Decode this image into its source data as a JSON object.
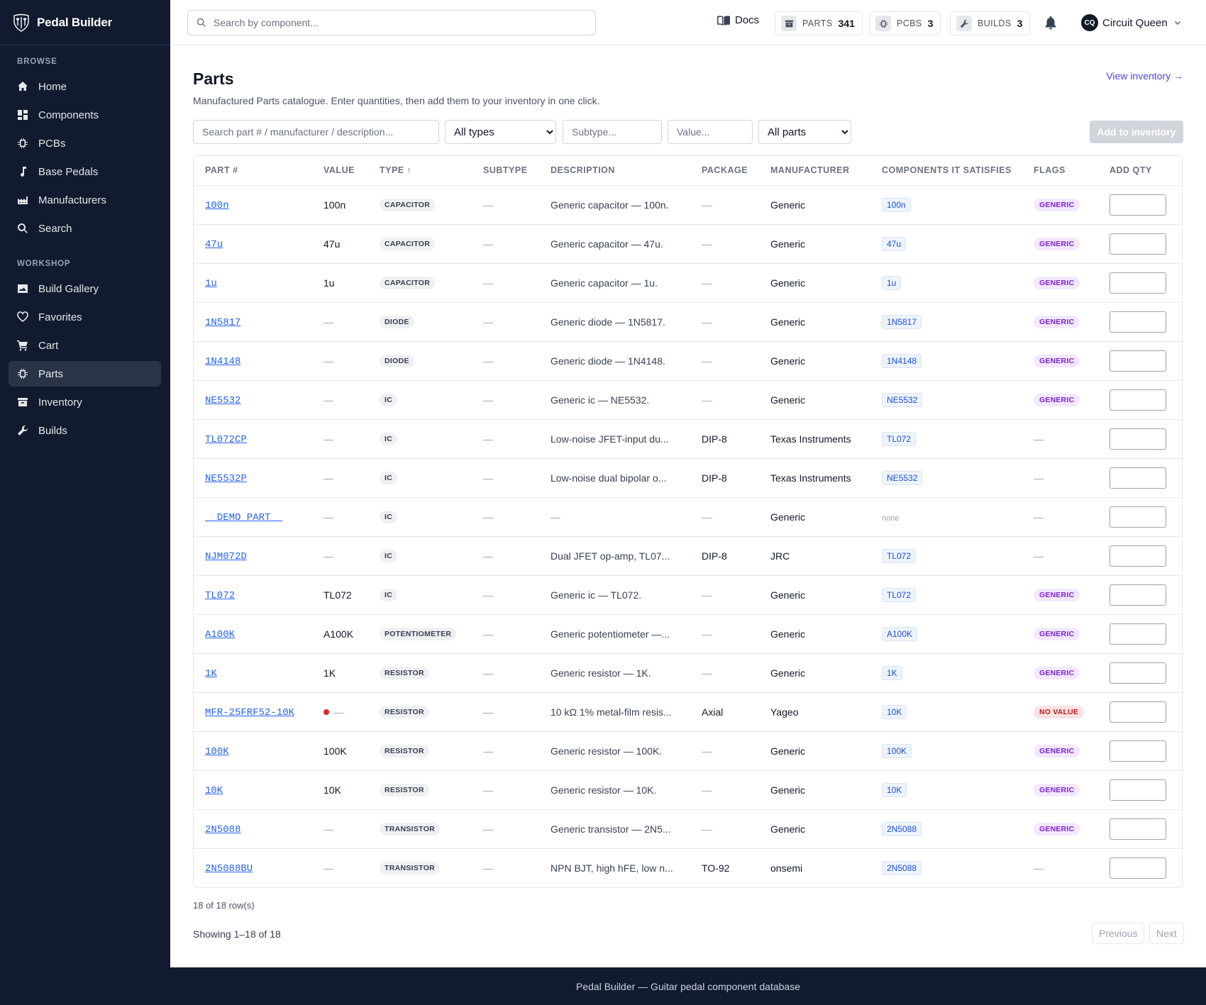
{
  "app": {
    "name": "Pedal Builder"
  },
  "sidebar": {
    "browse_label": "BROWSE",
    "workshop_label": "WORKSHOP",
    "browse": [
      {
        "label": "Home",
        "icon": "home-icon"
      },
      {
        "label": "Components",
        "icon": "grid-icon"
      },
      {
        "label": "PCBs",
        "icon": "chip-icon"
      },
      {
        "label": "Base Pedals",
        "icon": "music-note-icon"
      },
      {
        "label": "Manufacturers",
        "icon": "factory-icon"
      },
      {
        "label": "Search",
        "icon": "search-icon"
      }
    ],
    "workshop": [
      {
        "label": "Build Gallery",
        "icon": "image-icon"
      },
      {
        "label": "Favorites",
        "icon": "heart-icon"
      },
      {
        "label": "Cart",
        "icon": "cart-icon"
      },
      {
        "label": "Parts",
        "icon": "chip-icon",
        "active": true
      },
      {
        "label": "Inventory",
        "icon": "archive-icon"
      },
      {
        "label": "Builds",
        "icon": "wrench-icon"
      }
    ]
  },
  "topbar": {
    "search_placeholder": "Search by component...",
    "docs_label": "Docs",
    "stats": [
      {
        "label": "PARTS",
        "value": "341",
        "icon": "archive-icon"
      },
      {
        "label": "PCBS",
        "value": "3",
        "icon": "chip-icon"
      },
      {
        "label": "BUILDS",
        "value": "3",
        "icon": "wrench-icon"
      }
    ],
    "user": {
      "initials": "CQ",
      "name": "Circuit Queen"
    }
  },
  "page": {
    "title": "Parts",
    "subtitle": "Manufactured Parts catalogue. Enter quantities, then add them to your inventory in one click.",
    "view_inventory": "View inventory →",
    "filters": {
      "search_placeholder": "Search part # / manufacturer / description...",
      "type_selected": "All types",
      "subtype_placeholder": "Subtype...",
      "value_placeholder": "Value...",
      "scope_selected": "All parts"
    },
    "add_button": "Add to inventory"
  },
  "table": {
    "columns": [
      "PART #",
      "VALUE",
      "TYPE ↑",
      "SUBTYPE",
      "DESCRIPTION",
      "PACKAGE",
      "MANUFACTURER",
      "COMPONENTS IT SATISFIES",
      "FLAGS",
      "ADD QTY"
    ],
    "rows": [
      {
        "part": "100n",
        "value": "100n",
        "type": "CAPACITOR",
        "subtype": "—",
        "description": "Generic capacitor — 100n.",
        "package": "—",
        "manufacturer": "Generic",
        "component": "100n",
        "flag": "GENERIC"
      },
      {
        "part": "47u",
        "value": "47u",
        "type": "CAPACITOR",
        "subtype": "—",
        "description": "Generic capacitor — 47u.",
        "package": "—",
        "manufacturer": "Generic",
        "component": "47u",
        "flag": "GENERIC"
      },
      {
        "part": "1u",
        "value": "1u",
        "type": "CAPACITOR",
        "subtype": "—",
        "description": "Generic capacitor — 1u.",
        "package": "—",
        "manufacturer": "Generic",
        "component": "1u",
        "flag": "GENERIC"
      },
      {
        "part": "1N5817",
        "value": "—",
        "type": "DIODE",
        "subtype": "—",
        "description": "Generic diode — 1N5817.",
        "package": "—",
        "manufacturer": "Generic",
        "component": "1N5817",
        "flag": "GENERIC"
      },
      {
        "part": "1N4148",
        "value": "—",
        "type": "DIODE",
        "subtype": "—",
        "description": "Generic diode — 1N4148.",
        "package": "—",
        "manufacturer": "Generic",
        "component": "1N4148",
        "flag": "GENERIC"
      },
      {
        "part": "NE5532",
        "value": "—",
        "type": "IC",
        "subtype": "—",
        "description": "Generic ic — NE5532.",
        "package": "—",
        "manufacturer": "Generic",
        "component": "NE5532",
        "flag": "GENERIC"
      },
      {
        "part": "TL072CP",
        "value": "—",
        "type": "IC",
        "subtype": "—",
        "description": "Low-noise JFET-input du...",
        "package": "DIP-8",
        "manufacturer": "Texas Instruments",
        "component": "TL072",
        "flag": "—"
      },
      {
        "part": "NE5532P",
        "value": "—",
        "type": "IC",
        "subtype": "—",
        "description": "Low-noise dual bipolar o...",
        "package": "DIP-8",
        "manufacturer": "Texas Instruments",
        "component": "NE5532",
        "flag": "—"
      },
      {
        "part": "__DEMO_PART__",
        "value": "—",
        "type": "IC",
        "subtype": "—",
        "description": "—",
        "package": "—",
        "manufacturer": "Generic",
        "component": "none",
        "flag": "—"
      },
      {
        "part": "NJM072D",
        "value": "—",
        "type": "IC",
        "subtype": "—",
        "description": "Dual JFET op-amp, TL07...",
        "package": "DIP-8",
        "manufacturer": "JRC",
        "component": "TL072",
        "flag": "—"
      },
      {
        "part": "TL072",
        "value": "TL072",
        "type": "IC",
        "subtype": "—",
        "description": "Generic ic — TL072.",
        "package": "—",
        "manufacturer": "Generic",
        "component": "TL072",
        "flag": "GENERIC"
      },
      {
        "part": "A100K",
        "value": "A100K",
        "type": "POTENTIOMETER",
        "subtype": "—",
        "description": "Generic potentiometer —...",
        "package": "—",
        "manufacturer": "Generic",
        "component": "A100K",
        "flag": "GENERIC"
      },
      {
        "part": "1K",
        "value": "1K",
        "type": "RESISTOR",
        "subtype": "—",
        "description": "Generic resistor — 1K.",
        "package": "—",
        "manufacturer": "Generic",
        "component": "1K",
        "flag": "GENERIC"
      },
      {
        "part": "MFR-25FRF52-10K",
        "value": "—",
        "value_warning": true,
        "type": "RESISTOR",
        "subtype": "—",
        "description": "10 kΩ 1% metal-film resis...",
        "package": "Axial",
        "manufacturer": "Yageo",
        "component": "10K",
        "flag": "NO VALUE"
      },
      {
        "part": "100K",
        "value": "100K",
        "type": "RESISTOR",
        "subtype": "—",
        "description": "Generic resistor — 100K.",
        "package": "—",
        "manufacturer": "Generic",
        "component": "100K",
        "flag": "GENERIC"
      },
      {
        "part": "10K",
        "value": "10K",
        "type": "RESISTOR",
        "subtype": "—",
        "description": "Generic resistor — 10K.",
        "package": "—",
        "manufacturer": "Generic",
        "component": "10K",
        "flag": "GENERIC"
      },
      {
        "part": "2N5088",
        "value": "—",
        "type": "TRANSISTOR",
        "subtype": "—",
        "description": "Generic transistor — 2N5...",
        "package": "—",
        "manufacturer": "Generic",
        "component": "2N5088",
        "flag": "GENERIC"
      },
      {
        "part": "2N5088BU",
        "value": "—",
        "type": "TRANSISTOR",
        "subtype": "—",
        "description": "NPN BJT, high hFE, low n...",
        "package": "TO-92",
        "manufacturer": "onsemi",
        "component": "2N5088",
        "flag": "—"
      }
    ]
  },
  "footer_area": {
    "row_count": "18 of 18 row(s)",
    "showing": "Showing 1–18 of 18",
    "previous": "Previous",
    "next": "Next",
    "footer_text": "Pedal Builder — Guitar pedal component database"
  }
}
